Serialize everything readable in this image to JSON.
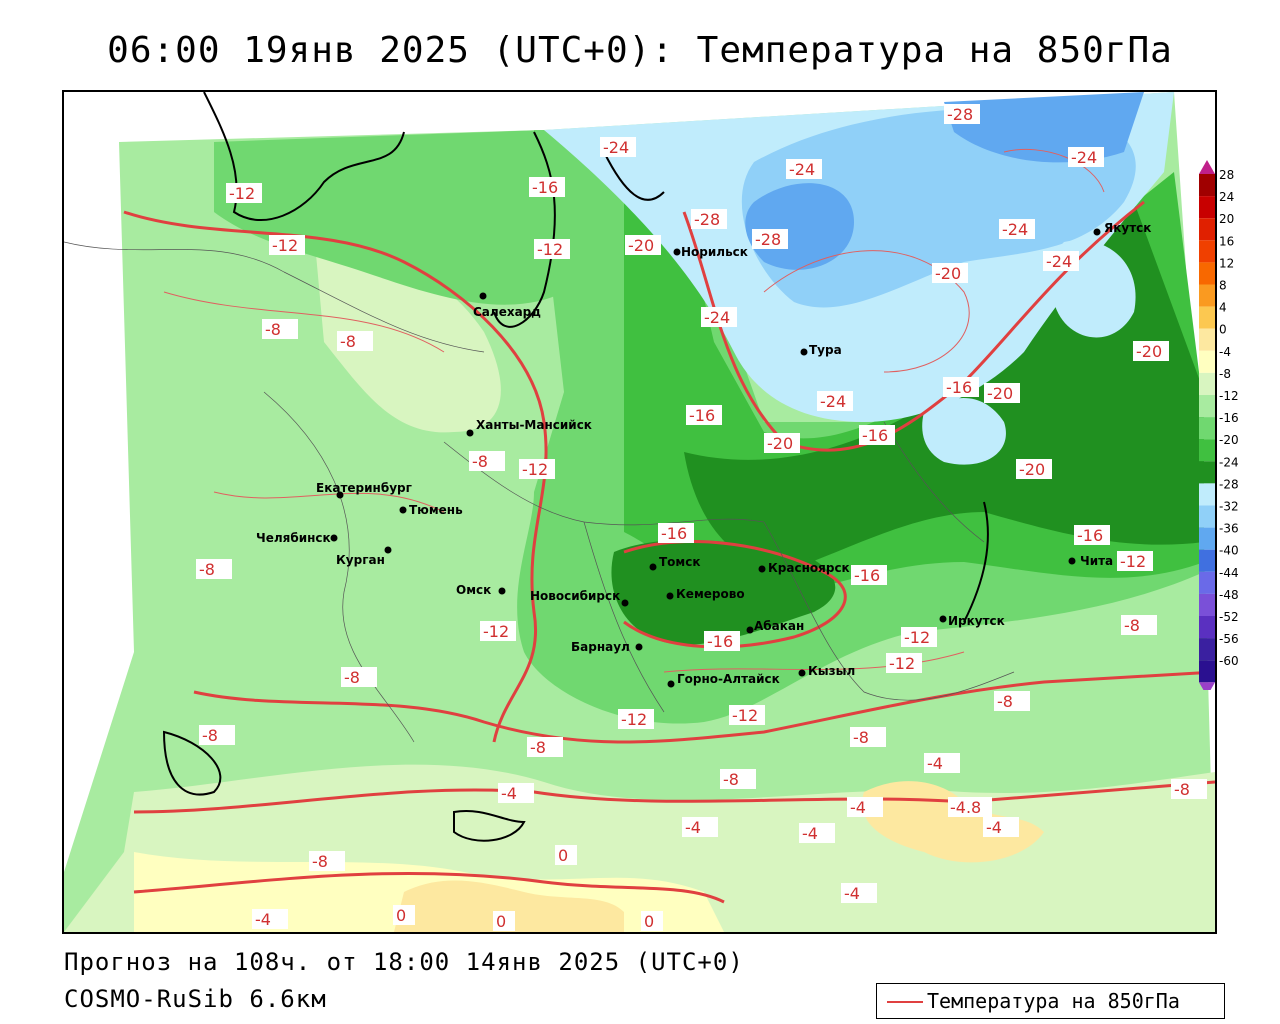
{
  "title": "06:00 19янв 2025 (UTC+0): Температура на 850гПа",
  "forecast_info": "Прогноз на 108ч. от 18:00 14янв 2025 (UTC+0)",
  "model_info": "COSMO-RuSib 6.6км",
  "legend": {
    "label": "Температура на 850гПа",
    "line_color": "#e04040"
  },
  "colorbar": {
    "labels": [
      "28",
      "24",
      "20",
      "16",
      "12",
      "8",
      "4",
      "0",
      "-4",
      "-8",
      "-12",
      "-16",
      "-20",
      "-24",
      "-28",
      "-32",
      "-36",
      "-40",
      "-44",
      "-48",
      "-52",
      "-56",
      "-60"
    ],
    "colors": [
      "#a00000",
      "#c80000",
      "#e02000",
      "#f04000",
      "#f86800",
      "#fa9a20",
      "#fcc850",
      "#fde8a0",
      "#ffffc0",
      "#d8f5c0",
      "#a8eba0",
      "#70d870",
      "#40c040",
      "#209020",
      "#c0ecfc",
      "#90d0f8",
      "#60a8f0",
      "#4070e0",
      "#6a6ae8",
      "#7a50d8",
      "#5a30c0",
      "#3a20a0",
      "#2a1090"
    ]
  },
  "cities": [
    {
      "name": "Норильск"
    },
    {
      "name": "Якутск"
    },
    {
      "name": "Салехард"
    },
    {
      "name": "Тура"
    },
    {
      "name": "Ханты-Мансийск"
    },
    {
      "name": "Екатеринбург"
    },
    {
      "name": "Тюмень"
    },
    {
      "name": "Челябинск"
    },
    {
      "name": "Курган"
    },
    {
      "name": "Омск"
    },
    {
      "name": "Томск"
    },
    {
      "name": "Красноярск"
    },
    {
      "name": "Кемерово"
    },
    {
      "name": "Новосибирск"
    },
    {
      "name": "Абакан"
    },
    {
      "name": "Барнаул"
    },
    {
      "name": "Иркутск"
    },
    {
      "name": "Чита"
    },
    {
      "name": "Горно-Алтайск"
    },
    {
      "name": "Кызыл"
    }
  ],
  "contour_labels": [
    "-28",
    "-24",
    "-20",
    "-16",
    "-12",
    "-8",
    "-4",
    "0",
    "-4.8"
  ]
}
